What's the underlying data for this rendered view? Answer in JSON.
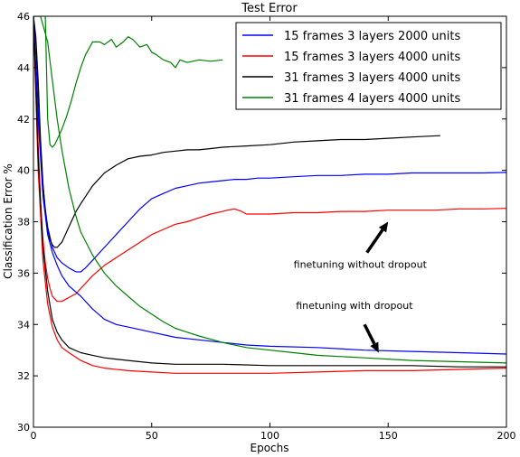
{
  "chart_data": {
    "type": "line",
    "title": "Test Error",
    "xlabel": "Epochs",
    "ylabel": "Classification Error %",
    "xlim": [
      0,
      200
    ],
    "ylim": [
      30,
      46
    ],
    "xticks": [
      0,
      50,
      100,
      150,
      200
    ],
    "yticks": [
      30,
      32,
      34,
      36,
      38,
      40,
      42,
      44,
      46
    ],
    "grid": false,
    "legend_position": "top-right",
    "series": [
      {
        "name": "15 frames 3 layers 2000 units",
        "color": "#0000ff",
        "style": "finetune",
        "x": [
          0,
          1,
          2,
          3,
          4,
          5,
          6,
          8,
          10,
          12,
          15,
          18,
          20,
          22,
          25,
          28,
          30,
          35,
          40,
          45,
          50,
          55,
          60,
          65,
          70,
          75,
          80,
          85,
          90,
          95,
          100,
          110,
          120,
          130,
          140,
          150,
          160,
          170,
          180,
          190,
          200
        ],
        "y": [
          46.0,
          45.0,
          42.8,
          40.8,
          39.4,
          38.5,
          37.8,
          37.0,
          36.6,
          36.4,
          36.2,
          36.05,
          36.05,
          36.2,
          36.5,
          36.8,
          37.0,
          37.5,
          38.0,
          38.5,
          38.9,
          39.1,
          39.3,
          39.4,
          39.5,
          39.55,
          39.6,
          39.65,
          39.65,
          39.7,
          39.7,
          39.75,
          39.8,
          39.8,
          39.85,
          39.85,
          39.9,
          39.9,
          39.9,
          39.9,
          39.92
        ]
      },
      {
        "name": "15 frames 3 layers 4000 units",
        "color": "#ff0000",
        "style": "finetune",
        "x": [
          0,
          1,
          2,
          3,
          4,
          5,
          6,
          7,
          8,
          10,
          12,
          14,
          15,
          18,
          20,
          25,
          30,
          35,
          40,
          45,
          50,
          55,
          60,
          65,
          70,
          75,
          80,
          82,
          85,
          88,
          90,
          95,
          100,
          110,
          120,
          130,
          140,
          150,
          160,
          170,
          180,
          190,
          200
        ],
        "y": [
          46.0,
          44.0,
          41.0,
          38.8,
          37.3,
          36.4,
          35.8,
          35.4,
          35.1,
          34.9,
          34.9,
          35.0,
          35.05,
          35.2,
          35.4,
          35.9,
          36.3,
          36.6,
          36.9,
          37.2,
          37.5,
          37.7,
          37.9,
          38.0,
          38.15,
          38.3,
          38.4,
          38.45,
          38.5,
          38.4,
          38.3,
          38.3,
          38.3,
          38.35,
          38.35,
          38.4,
          38.4,
          38.45,
          38.45,
          38.45,
          38.5,
          38.5,
          38.52
        ]
      },
      {
        "name": "31 frames 3 layers 4000 units",
        "color": "#000000",
        "style": "finetune",
        "x": [
          0,
          1,
          2,
          3,
          4,
          5,
          6,
          7,
          8,
          9,
          10,
          12,
          14,
          16,
          18,
          20,
          25,
          30,
          35,
          40,
          45,
          50,
          55,
          60,
          65,
          70,
          75,
          80,
          90,
          100,
          110,
          120,
          130,
          140,
          150,
          160,
          172
        ],
        "y": [
          46.0,
          45.2,
          43.5,
          41.2,
          39.5,
          38.4,
          37.7,
          37.3,
          37.1,
          37.0,
          37.0,
          37.2,
          37.6,
          38.0,
          38.4,
          38.7,
          39.4,
          39.9,
          40.2,
          40.45,
          40.55,
          40.6,
          40.7,
          40.75,
          40.8,
          40.8,
          40.85,
          40.9,
          40.95,
          41.0,
          41.1,
          41.15,
          41.2,
          41.2,
          41.25,
          41.3,
          41.35
        ]
      },
      {
        "name": "31 frames 4 layers 4000 units",
        "color": "#008000",
        "style": "finetune",
        "x": [
          5,
          6,
          7,
          8,
          9,
          10,
          12,
          14,
          16,
          18,
          20,
          22,
          25,
          28,
          30,
          33,
          35,
          38,
          40,
          42,
          45,
          48,
          50,
          52,
          55,
          58,
          60,
          62,
          65,
          70,
          75,
          80
        ],
        "y": [
          46.0,
          42.0,
          41.0,
          40.9,
          41.0,
          41.2,
          41.6,
          42.1,
          42.7,
          43.4,
          44.0,
          44.5,
          45.0,
          45.0,
          44.9,
          45.1,
          44.8,
          45.0,
          45.2,
          45.1,
          44.8,
          44.9,
          44.6,
          44.5,
          44.3,
          44.2,
          44.0,
          44.3,
          44.2,
          44.3,
          44.25,
          44.3
        ]
      },
      {
        "name": "15 frames 3 layers 2000 units",
        "color": "#0000ff",
        "style": "dropout",
        "x": [
          0,
          2,
          4,
          6,
          8,
          10,
          12,
          15,
          20,
          25,
          30,
          35,
          40,
          50,
          60,
          70,
          80,
          90,
          100,
          120,
          140,
          160,
          180,
          200
        ],
        "y": [
          46.0,
          42.0,
          39.0,
          37.5,
          36.8,
          36.3,
          35.9,
          35.5,
          35.1,
          34.6,
          34.2,
          34.0,
          33.9,
          33.7,
          33.5,
          33.4,
          33.3,
          33.2,
          33.15,
          33.1,
          33.0,
          32.95,
          32.9,
          32.85
        ]
      },
      {
        "name": "15 frames 3 layers 4000 units",
        "color": "#ff0000",
        "style": "dropout",
        "x": [
          0,
          2,
          4,
          6,
          8,
          10,
          12,
          15,
          20,
          25,
          30,
          40,
          50,
          60,
          80,
          100,
          120,
          140,
          160,
          180,
          200
        ],
        "y": [
          46.0,
          40.0,
          36.5,
          34.8,
          33.9,
          33.4,
          33.1,
          32.9,
          32.6,
          32.4,
          32.3,
          32.2,
          32.15,
          32.1,
          32.1,
          32.1,
          32.15,
          32.2,
          32.2,
          32.25,
          32.3
        ]
      },
      {
        "name": "31 frames 3 layers 4000 units",
        "color": "#000000",
        "style": "dropout",
        "x": [
          0,
          2,
          4,
          6,
          8,
          10,
          12,
          15,
          20,
          25,
          30,
          40,
          50,
          60,
          80,
          100,
          120,
          140,
          160,
          180,
          200
        ],
        "y": [
          46.0,
          40.5,
          37.0,
          35.3,
          34.2,
          33.7,
          33.4,
          33.1,
          32.9,
          32.8,
          32.7,
          32.6,
          32.5,
          32.45,
          32.45,
          32.4,
          32.4,
          32.4,
          32.4,
          32.35,
          32.35
        ]
      },
      {
        "name": "31 frames 4 layers 4000 units",
        "color": "#008000",
        "style": "dropout",
        "x": [
          0,
          3,
          6,
          8,
          10,
          12,
          15,
          18,
          20,
          25,
          30,
          35,
          40,
          45,
          50,
          55,
          60,
          65,
          70,
          80,
          90,
          100,
          110,
          120,
          140,
          160,
          180,
          200
        ],
        "y": [
          46.0,
          46.0,
          45.0,
          43.5,
          42.0,
          40.8,
          39.3,
          38.2,
          37.6,
          36.7,
          36.0,
          35.5,
          35.1,
          34.7,
          34.4,
          34.1,
          33.85,
          33.7,
          33.55,
          33.3,
          33.1,
          33.0,
          32.9,
          32.8,
          32.7,
          32.6,
          32.55,
          32.5
        ]
      }
    ],
    "annotations": [
      {
        "text": "finetuning without dropout",
        "x": 110,
        "y": 36.2,
        "arrow_from": [
          141,
          36.8
        ],
        "arrow_to": [
          150,
          38.0
        ]
      },
      {
        "text": "finetuning with dropout",
        "x": 111,
        "y": 34.6,
        "arrow_from": [
          140,
          34.0
        ],
        "arrow_to": [
          146,
          32.9
        ]
      }
    ]
  }
}
